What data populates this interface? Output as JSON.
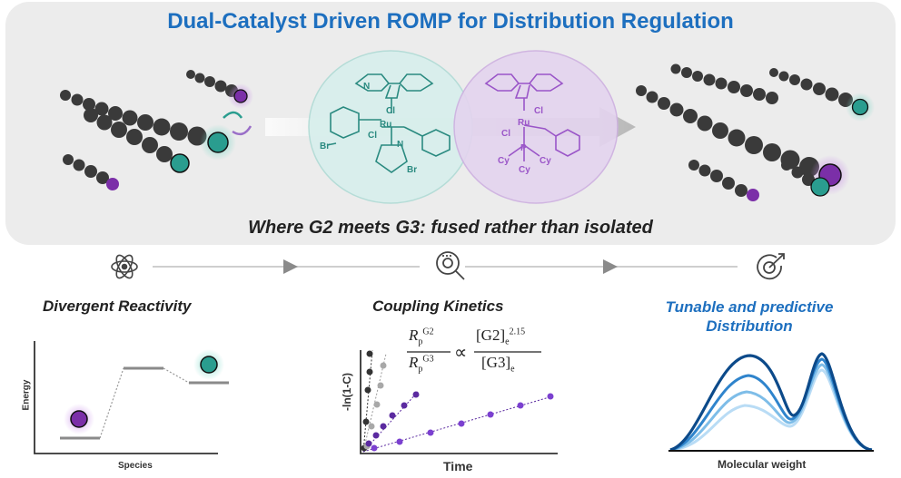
{
  "title": "Dual-Catalyst Driven ROMP for Distribution Regulation",
  "subtitle": "Where G2 meets G3: fused rather than isolated",
  "colors": {
    "teal": "#2a9d8f",
    "purple": "#7b2fa8",
    "bead": "#3a3a3a",
    "blue": "#1d6fbf"
  },
  "catalyst_g2": {
    "atoms": [
      "Cl",
      "Ru",
      "Cl",
      "N",
      "N",
      "Br",
      "Br"
    ]
  },
  "catalyst_g3": {
    "atoms": [
      "Cl",
      "Ru",
      "Cl",
      "P",
      "Cy",
      "Cy",
      "Cy"
    ]
  },
  "steps": [
    {
      "icon": "atom-icon",
      "heading": "Divergent Reactivity"
    },
    {
      "icon": "magnifier-gear-icon",
      "heading": "Coupling Kinetics"
    },
    {
      "icon": "target-arrow-icon",
      "heading": "Tunable and predictive Distribution"
    }
  ],
  "energy_panel": {
    "ylabel": "Energy",
    "xlabel": "Species"
  },
  "kinetics_panel": {
    "ylabel": "-ln(1-C)",
    "xlabel": "Time",
    "equation": {
      "lhs_num": "R",
      "lhs_num_sub": "p",
      "lhs_num_sup": "G2",
      "lhs_den": "R",
      "lhs_den_sub": "p",
      "lhs_den_sup": "G3",
      "relation": "∝",
      "rhs_num": "[G2]",
      "rhs_num_sub": "e",
      "rhs_num_sup": "2.15",
      "rhs_den": "[G3]",
      "rhs_den_sub": "e"
    }
  },
  "distribution_panel": {
    "xlabel": "Molecular weight"
  }
}
